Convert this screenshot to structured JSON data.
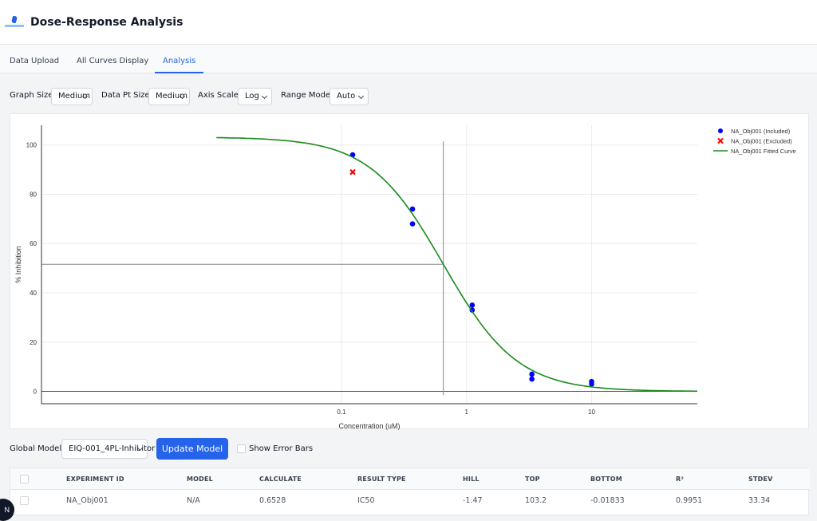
{
  "app": {
    "title": "Dose-Response Analysis"
  },
  "tabs": [
    {
      "label": "Data Upload"
    },
    {
      "label": "All Curves Display"
    },
    {
      "label": "Analysis"
    }
  ],
  "active_tab": "Analysis",
  "controls": {
    "graph_size": {
      "label": "Graph Size:",
      "value": "Medium"
    },
    "data_pt_size": {
      "label": "Data Pt Size:",
      "value": "Medium"
    },
    "axis_scale": {
      "label": "Axis Scale:",
      "value": "Log"
    },
    "range_mode": {
      "label": "Range Mode:",
      "value": "Auto"
    }
  },
  "chart_data": {
    "type": "scatter",
    "xlabel": "Concentration (uM)",
    "ylabel": "% Inhibition",
    "x_scale": "log",
    "x_ticks": [
      0.1,
      1,
      10
    ],
    "y_ticks": [
      0,
      20,
      40,
      60,
      80,
      100
    ],
    "xlim": [
      0.0004,
      70
    ],
    "ylim": [
      -5,
      108
    ],
    "grid": true,
    "legend_position": "top-right",
    "reference_lines": {
      "x": 0.6528,
      "y": 51.6
    },
    "series": [
      {
        "name": "NA_Obj001 (Included)",
        "kind": "points",
        "color": "#0000ff",
        "points": [
          [
            0.123,
            96
          ],
          [
            0.37,
            74
          ],
          [
            0.37,
            68
          ],
          [
            1.11,
            35
          ],
          [
            1.11,
            33
          ],
          [
            3.33,
            7
          ],
          [
            3.33,
            5
          ],
          [
            10,
            4
          ],
          [
            10,
            3
          ]
        ]
      },
      {
        "name": "NA_Obj001 (Excluded)",
        "kind": "x-marks",
        "color": "#ff0000",
        "points": [
          [
            0.123,
            89
          ]
        ]
      },
      {
        "name": "NA_Obj001 Fitted Curve",
        "kind": "curve",
        "color": "#1a8a1a",
        "model": {
          "top": 103.2,
          "bottom": -0.01833,
          "ic50": 0.6528,
          "hill": -1.47
        },
        "x_range": [
          0.01,
          70
        ]
      }
    ]
  },
  "model_row": {
    "global_model_label": "Global Model:",
    "global_model_value": "EIQ-001_4PL-Inhibitor",
    "update_button": "Update Model",
    "error_bars_label": "Show Error Bars"
  },
  "table": {
    "columns": [
      "EXPERIMENT ID",
      "MODEL",
      "CALCULATE",
      "RESULT TYPE",
      "HILL",
      "TOP",
      "BOTTOM",
      "R²",
      "STDEV"
    ],
    "rows": [
      [
        "NA_Obj001",
        "N/A",
        "0.6528",
        "IC50",
        "-1.47",
        "103.2",
        "-0.01833",
        "0.9951",
        "33.34"
      ]
    ]
  },
  "corner_badge": "N"
}
